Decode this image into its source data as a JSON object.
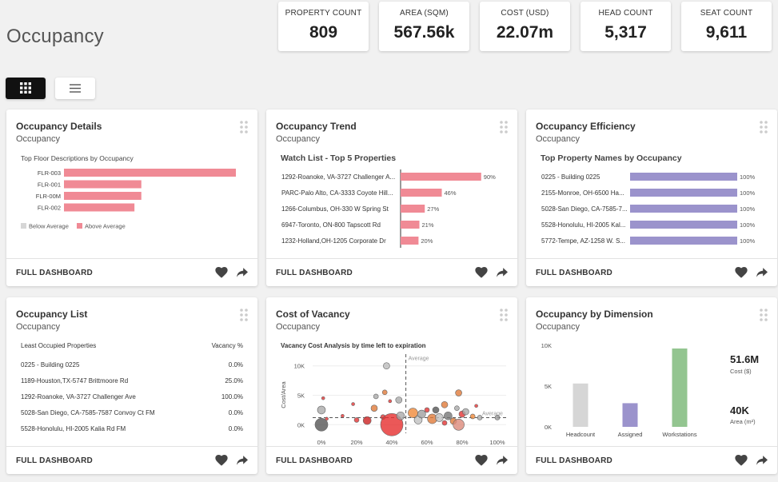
{
  "page": {
    "title": "Occupancy"
  },
  "kpis": [
    {
      "label": "PROPERTY COUNT",
      "value": "809"
    },
    {
      "label": "AREA (SQM)",
      "value": "567.56k"
    },
    {
      "label": "COST (USD)",
      "value": "22.07m"
    },
    {
      "label": "HEAD COUNT",
      "value": "5,317"
    },
    {
      "label": "SEAT COUNT",
      "value": "9,611"
    }
  ],
  "view_toggle": {
    "grid_icon": "grid-icon",
    "list_icon": "list-icon",
    "selected": "grid"
  },
  "footer_label": "FULL DASHBOARD",
  "colors": {
    "pink": "#f08a95",
    "purple": "#9b93cc",
    "green": "#93c590",
    "grey": "#d6d6d6",
    "dark_button": "#111111"
  },
  "cards": [
    {
      "title": "Occupancy Details",
      "subtitle": "Occupancy"
    },
    {
      "title": "Occupancy Trend",
      "subtitle": "Occupancy"
    },
    {
      "title": "Occupancy Efficiency",
      "subtitle": "Occupancy"
    },
    {
      "title": "Occupancy List",
      "subtitle": "Occupancy"
    },
    {
      "title": "Cost of Vacancy",
      "subtitle": "Occupancy"
    },
    {
      "title": "Occupancy by Dimension",
      "subtitle": "Occupancy"
    }
  ],
  "occupancy_list": {
    "header_left": "Least Occupied Properties",
    "header_right": "Vacancy %",
    "rows": [
      {
        "name": "0225 - Building 0225",
        "value": "0.0%"
      },
      {
        "name": "1189-Houston,TX-5747 Brittmoore Rd",
        "value": "25.0%"
      },
      {
        "name": "1292-Roanoke, VA-3727 Challenger Ave",
        "value": "100.0%"
      },
      {
        "name": "5028-San Diego, CA-7585-7587 Convoy Ct FM",
        "value": "0.0%"
      },
      {
        "name": "5528-Honolulu, HI-2005 Kalia Rd FM",
        "value": "0.0%"
      }
    ]
  },
  "dimension_kpis": [
    {
      "value": "51.6M",
      "label": "Cost ($)"
    },
    {
      "value": "40K",
      "label": "Area (m²)"
    }
  ],
  "chart_data": [
    {
      "id": "details",
      "type": "bar",
      "orientation": "horizontal",
      "title": "Top Floor Descriptions by Occupancy",
      "categories": [
        "FLR-003",
        "FLR-001",
        "FLR-00M",
        "FLR-002"
      ],
      "values": [
        100,
        45,
        45,
        41
      ],
      "xlim": [
        0,
        100
      ],
      "legend": [
        {
          "name": "Below Average",
          "color": "#d6d6d6"
        },
        {
          "name": "Above Average",
          "color": "#f08a95"
        }
      ],
      "legend_position": "bottom-left"
    },
    {
      "id": "trend",
      "type": "bar",
      "orientation": "horizontal",
      "title": "Watch List - Top 5 Properties",
      "categories": [
        "1292-Roanoke, VA-3727 Challenger A...",
        "PARC-Palo Alto, CA-3333 Coyote Hill...",
        "1266-Columbus, OH-330 W Spring St",
        "6947-Toronto, ON-800 Tapscott Rd",
        "1232-Holland,OH-1205 Corporate Dr"
      ],
      "values": [
        90,
        46,
        27,
        21,
        20
      ],
      "value_labels": [
        "90%",
        "46%",
        "27%",
        "21%",
        "20%"
      ],
      "xlim": [
        0,
        100
      ]
    },
    {
      "id": "efficiency",
      "type": "bar",
      "orientation": "horizontal",
      "title": "Top Property Names by Occupancy",
      "categories": [
        "0225 - Building 0225",
        "2155-Monroe, OH-6500 Ha...",
        "5028-San Diego, CA-7585-7...",
        "5528-Honolulu, HI-2005 Kal...",
        "5772-Tempe, AZ-1258 W. S..."
      ],
      "values": [
        100,
        100,
        100,
        100,
        100
      ],
      "value_labels": [
        "100%",
        "100%",
        "100%",
        "100%",
        "100%"
      ],
      "xlim": [
        0,
        100
      ]
    },
    {
      "id": "vacancy",
      "type": "scatter",
      "title": "Vacancy Cost Analysis by time left to expiration",
      "xlabel": "Workstation Vacancy %",
      "ylabel": "Cost/Area",
      "xlim": [
        -5,
        105
      ],
      "ylim": [
        -2000,
        12000
      ],
      "x_ticks": [
        "0%",
        "20%",
        "40%",
        "60%",
        "80%",
        "100%"
      ],
      "y_ticks": [
        "0K",
        "5K",
        "10K"
      ],
      "reference_lines": [
        {
          "axis": "x",
          "value": 48,
          "label": "Average"
        },
        {
          "axis": "y",
          "value": 1200,
          "label": "Average"
        }
      ],
      "points": [
        {
          "x": 0,
          "y": 0,
          "r": 8,
          "c": "#555555"
        },
        {
          "x": 0,
          "y": 2500,
          "r": 5,
          "c": "#aaaaaa"
        },
        {
          "x": 3,
          "y": 1000,
          "r": 2,
          "c": "#e33333"
        },
        {
          "x": 1,
          "y": 4500,
          "r": 2,
          "c": "#e33333"
        },
        {
          "x": 12,
          "y": 1500,
          "r": 2,
          "c": "#e33333"
        },
        {
          "x": 18,
          "y": 3500,
          "r": 2,
          "c": "#e33333"
        },
        {
          "x": 20,
          "y": 800,
          "r": 3,
          "c": "#e33333"
        },
        {
          "x": 26,
          "y": 700,
          "r": 5,
          "c": "#cc2222"
        },
        {
          "x": 30,
          "y": 2800,
          "r": 4,
          "c": "#e07a3a"
        },
        {
          "x": 35,
          "y": 1300,
          "r": 3,
          "c": "#e33333"
        },
        {
          "x": 40,
          "y": 0,
          "r": 14,
          "c": "#e62e2e"
        },
        {
          "x": 31,
          "y": 4800,
          "r": 3,
          "c": "#aaaaaa"
        },
        {
          "x": 36,
          "y": 5500,
          "r": 3,
          "c": "#e07a3a"
        },
        {
          "x": 39,
          "y": 4000,
          "r": 2,
          "c": "#e33333"
        },
        {
          "x": 44,
          "y": 4200,
          "r": 4,
          "c": "#aaaaaa"
        },
        {
          "x": 37,
          "y": 10000,
          "r": 4,
          "c": "#bbbbbb"
        },
        {
          "x": 45,
          "y": 1500,
          "r": 5,
          "c": "#aaaaaa"
        },
        {
          "x": 52,
          "y": 2000,
          "r": 6,
          "c": "#f08a3a"
        },
        {
          "x": 55,
          "y": 800,
          "r": 5,
          "c": "#c0c0c0"
        },
        {
          "x": 57,
          "y": 1800,
          "r": 5,
          "c": "#a0a0a0"
        },
        {
          "x": 60,
          "y": 2500,
          "r": 3,
          "c": "#e33333"
        },
        {
          "x": 63,
          "y": 1000,
          "r": 6,
          "c": "#e07a3a"
        },
        {
          "x": 65,
          "y": 2500,
          "r": 4,
          "c": "#555555"
        },
        {
          "x": 67,
          "y": 1200,
          "r": 5,
          "c": "#c0c0c0"
        },
        {
          "x": 70,
          "y": 300,
          "r": 3,
          "c": "#e33333"
        },
        {
          "x": 70,
          "y": 3400,
          "r": 4,
          "c": "#e07a3a"
        },
        {
          "x": 72,
          "y": 1500,
          "r": 5,
          "c": "#777777"
        },
        {
          "x": 75,
          "y": 600,
          "r": 4,
          "c": "#e07a3a"
        },
        {
          "x": 77,
          "y": 2800,
          "r": 3,
          "c": "#aaaaaa"
        },
        {
          "x": 78,
          "y": 5400,
          "r": 4,
          "c": "#e07a3a"
        },
        {
          "x": 78,
          "y": 0,
          "r": 7,
          "c": "#dc8a7a"
        },
        {
          "x": 80,
          "y": 1800,
          "r": 4,
          "c": "#e33333"
        },
        {
          "x": 82,
          "y": 2200,
          "r": 4,
          "c": "#aaaaaa"
        },
        {
          "x": 86,
          "y": 1400,
          "r": 3,
          "c": "#f08a3a"
        },
        {
          "x": 88,
          "y": 3200,
          "r": 2,
          "c": "#e33333"
        },
        {
          "x": 90,
          "y": 1200,
          "r": 3,
          "c": "#aaaaaa"
        },
        {
          "x": 100,
          "y": 1200,
          "r": 3,
          "c": "#999999"
        }
      ]
    },
    {
      "id": "dimension",
      "type": "bar",
      "orientation": "vertical",
      "categories": [
        "Headcount",
        "Assigned",
        "Workstations"
      ],
      "values": [
        5317,
        2900,
        9611
      ],
      "colors": [
        "#d6d6d6",
        "#9b93cc",
        "#93c590"
      ],
      "ylim": [
        0,
        10000
      ],
      "y_ticks": [
        "10K",
        "5K",
        "0K"
      ]
    }
  ]
}
